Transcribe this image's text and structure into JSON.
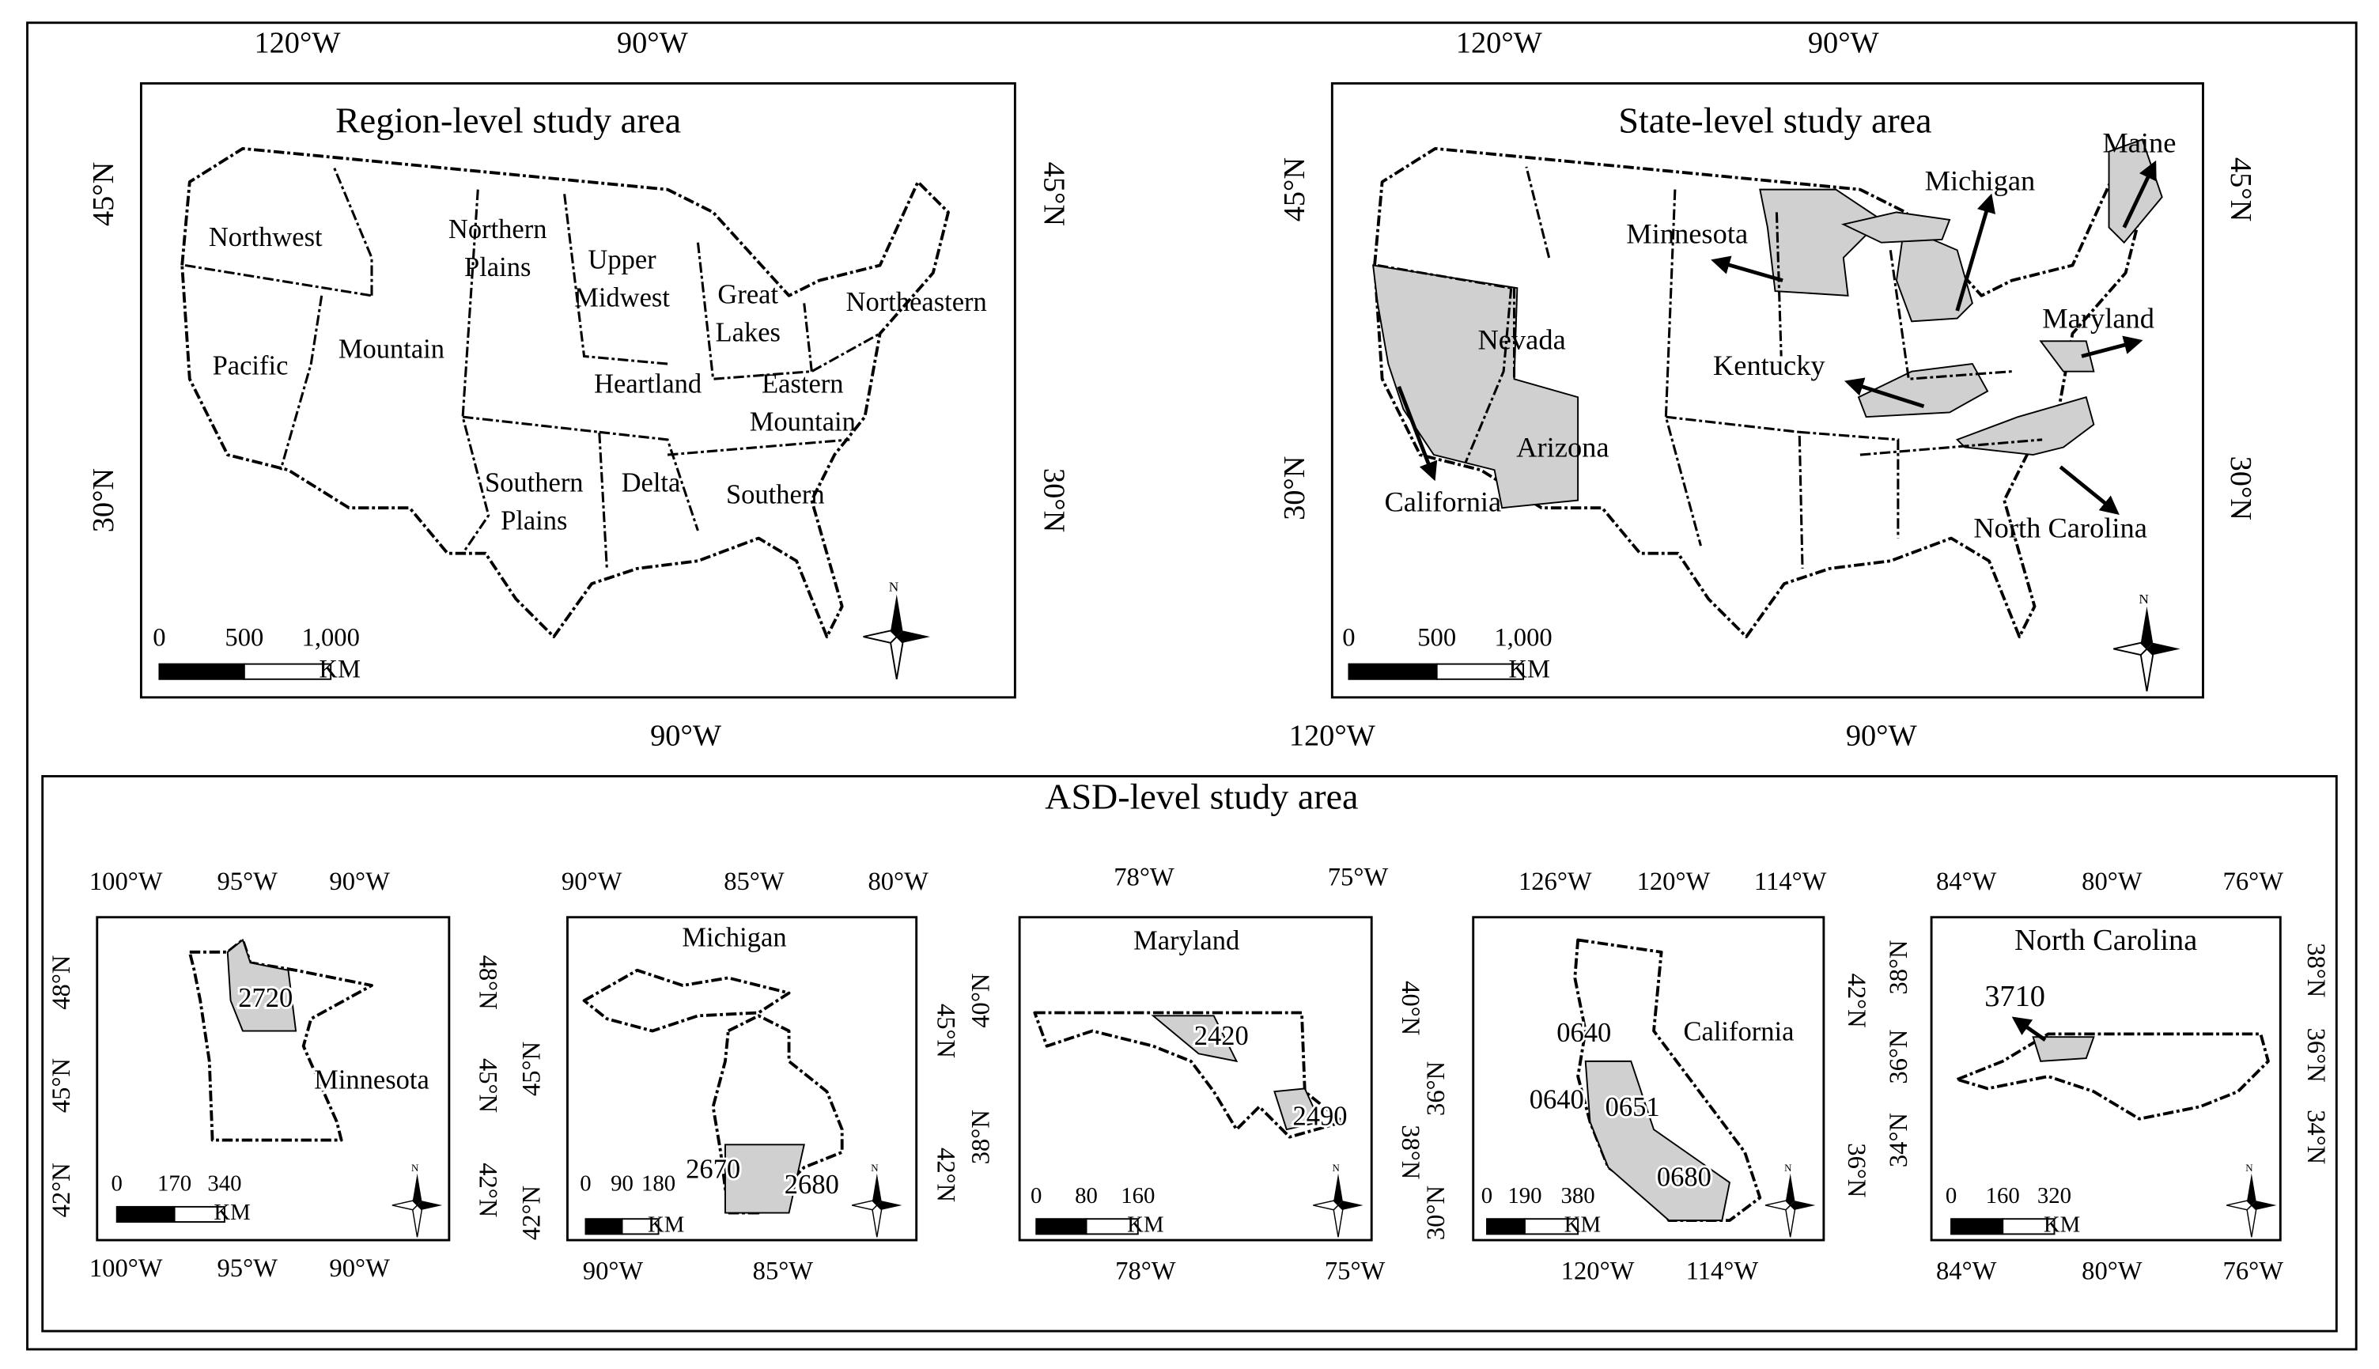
{
  "panels": [
    {
      "title": "Region-level study area",
      "top_ticks": [
        "120°W",
        "90°W"
      ],
      "bottom_ticks": [
        "90°W"
      ],
      "left_ticks": [
        "45°N",
        "30°N"
      ],
      "right_ticks": [
        "45°N",
        "30°N"
      ],
      "labels": [
        [
          "Northwest"
        ],
        [
          "Northern",
          "Plains"
        ],
        [
          "Upper",
          "Midwest"
        ],
        [
          "Great",
          "Lakes"
        ],
        [
          "Northeastern"
        ],
        [
          "Pacific"
        ],
        [
          "Mountain"
        ],
        [
          "Heartland"
        ],
        [
          "Eastern",
          "Mountain"
        ],
        [
          "Southern",
          "Plains"
        ],
        [
          "Delta"
        ],
        [
          "Southern"
        ]
      ],
      "scale": {
        "ticks": [
          "0",
          "500",
          "1,000"
        ],
        "unit": "KM"
      }
    },
    {
      "title": "State-level study area",
      "top_ticks": [
        "120°W",
        "90°W"
      ],
      "bottom_ticks": [
        "120°W",
        "90°W"
      ],
      "left_ticks": [
        "45°N",
        "30°N"
      ],
      "right_ticks": [
        "45°N",
        "30°N"
      ],
      "labels": [
        [
          "Minnesota"
        ],
        [
          "Michigan"
        ],
        [
          "Maine"
        ],
        [
          "Nevada"
        ],
        [
          "Maryland"
        ],
        [
          "Kentucky"
        ],
        [
          "Arizona"
        ],
        [
          "California"
        ],
        [
          "North Carolina"
        ]
      ],
      "scale": {
        "ticks": [
          "0",
          "500",
          "1,000"
        ],
        "unit": "KM"
      }
    }
  ],
  "compass_label": "N",
  "asd": {
    "title": "ASD-level study area",
    "maps": [
      {
        "top_ticks": [
          "100°W",
          "95°W",
          "90°W"
        ],
        "bottom_ticks": [
          "100°W",
          "95°W",
          "90°W"
        ],
        "left_ticks": [
          "48°N",
          "45°N",
          "42°N"
        ],
        "right_ticks": [
          "48°N",
          "45°N",
          "42°N"
        ],
        "labels": [
          "2720",
          "Minnesota"
        ],
        "scale": {
          "ticks": [
            "0",
            "170",
            "340"
          ],
          "unit": "KM"
        }
      },
      {
        "top_ticks": [
          "90°W",
          "85°W",
          "80°W"
        ],
        "bottom_ticks": [
          "90°W",
          "85°W"
        ],
        "left_ticks": [
          "45°N",
          "42°N"
        ],
        "right_ticks": [
          "45°N",
          "42°N"
        ],
        "labels": [
          "Michigan",
          "2670",
          "2680"
        ],
        "scale": {
          "ticks": [
            "0",
            "90",
            "180"
          ],
          "unit": "KM"
        }
      },
      {
        "top_ticks": [
          "78°W",
          "75°W"
        ],
        "bottom_ticks": [
          "78°W",
          "75°W"
        ],
        "left_ticks": [
          "40°N",
          "38°N"
        ],
        "right_ticks": [
          "40°N",
          "38°N"
        ],
        "labels": [
          "Maryland",
          "2420",
          "2490"
        ],
        "scale": {
          "ticks": [
            "0",
            "80",
            "160"
          ],
          "unit": "KM"
        }
      },
      {
        "top_ticks": [
          "126°W",
          "120°W",
          "114°W"
        ],
        "bottom_ticks": [
          "120°W",
          "114°W"
        ],
        "left_ticks": [
          "36°N",
          "30°N"
        ],
        "right_ticks": [
          "42°N",
          "36°N"
        ],
        "labels": [
          "0640",
          "California",
          "0640",
          "0651",
          "0680"
        ],
        "scale": {
          "ticks": [
            "0",
            "190",
            "380"
          ],
          "unit": "KM"
        }
      },
      {
        "top_ticks": [
          "84°W",
          "80°W",
          "76°W"
        ],
        "bottom_ticks": [
          "84°W",
          "80°W",
          "76°W"
        ],
        "left_ticks": [
          "38°N",
          "36°N",
          "34°N"
        ],
        "right_ticks": [
          "38°N",
          "36°N",
          "34°N"
        ],
        "labels": [
          "North Carolina",
          "3710"
        ],
        "scale": {
          "ticks": [
            "0",
            "160",
            "320"
          ],
          "unit": "KM"
        }
      }
    ]
  }
}
